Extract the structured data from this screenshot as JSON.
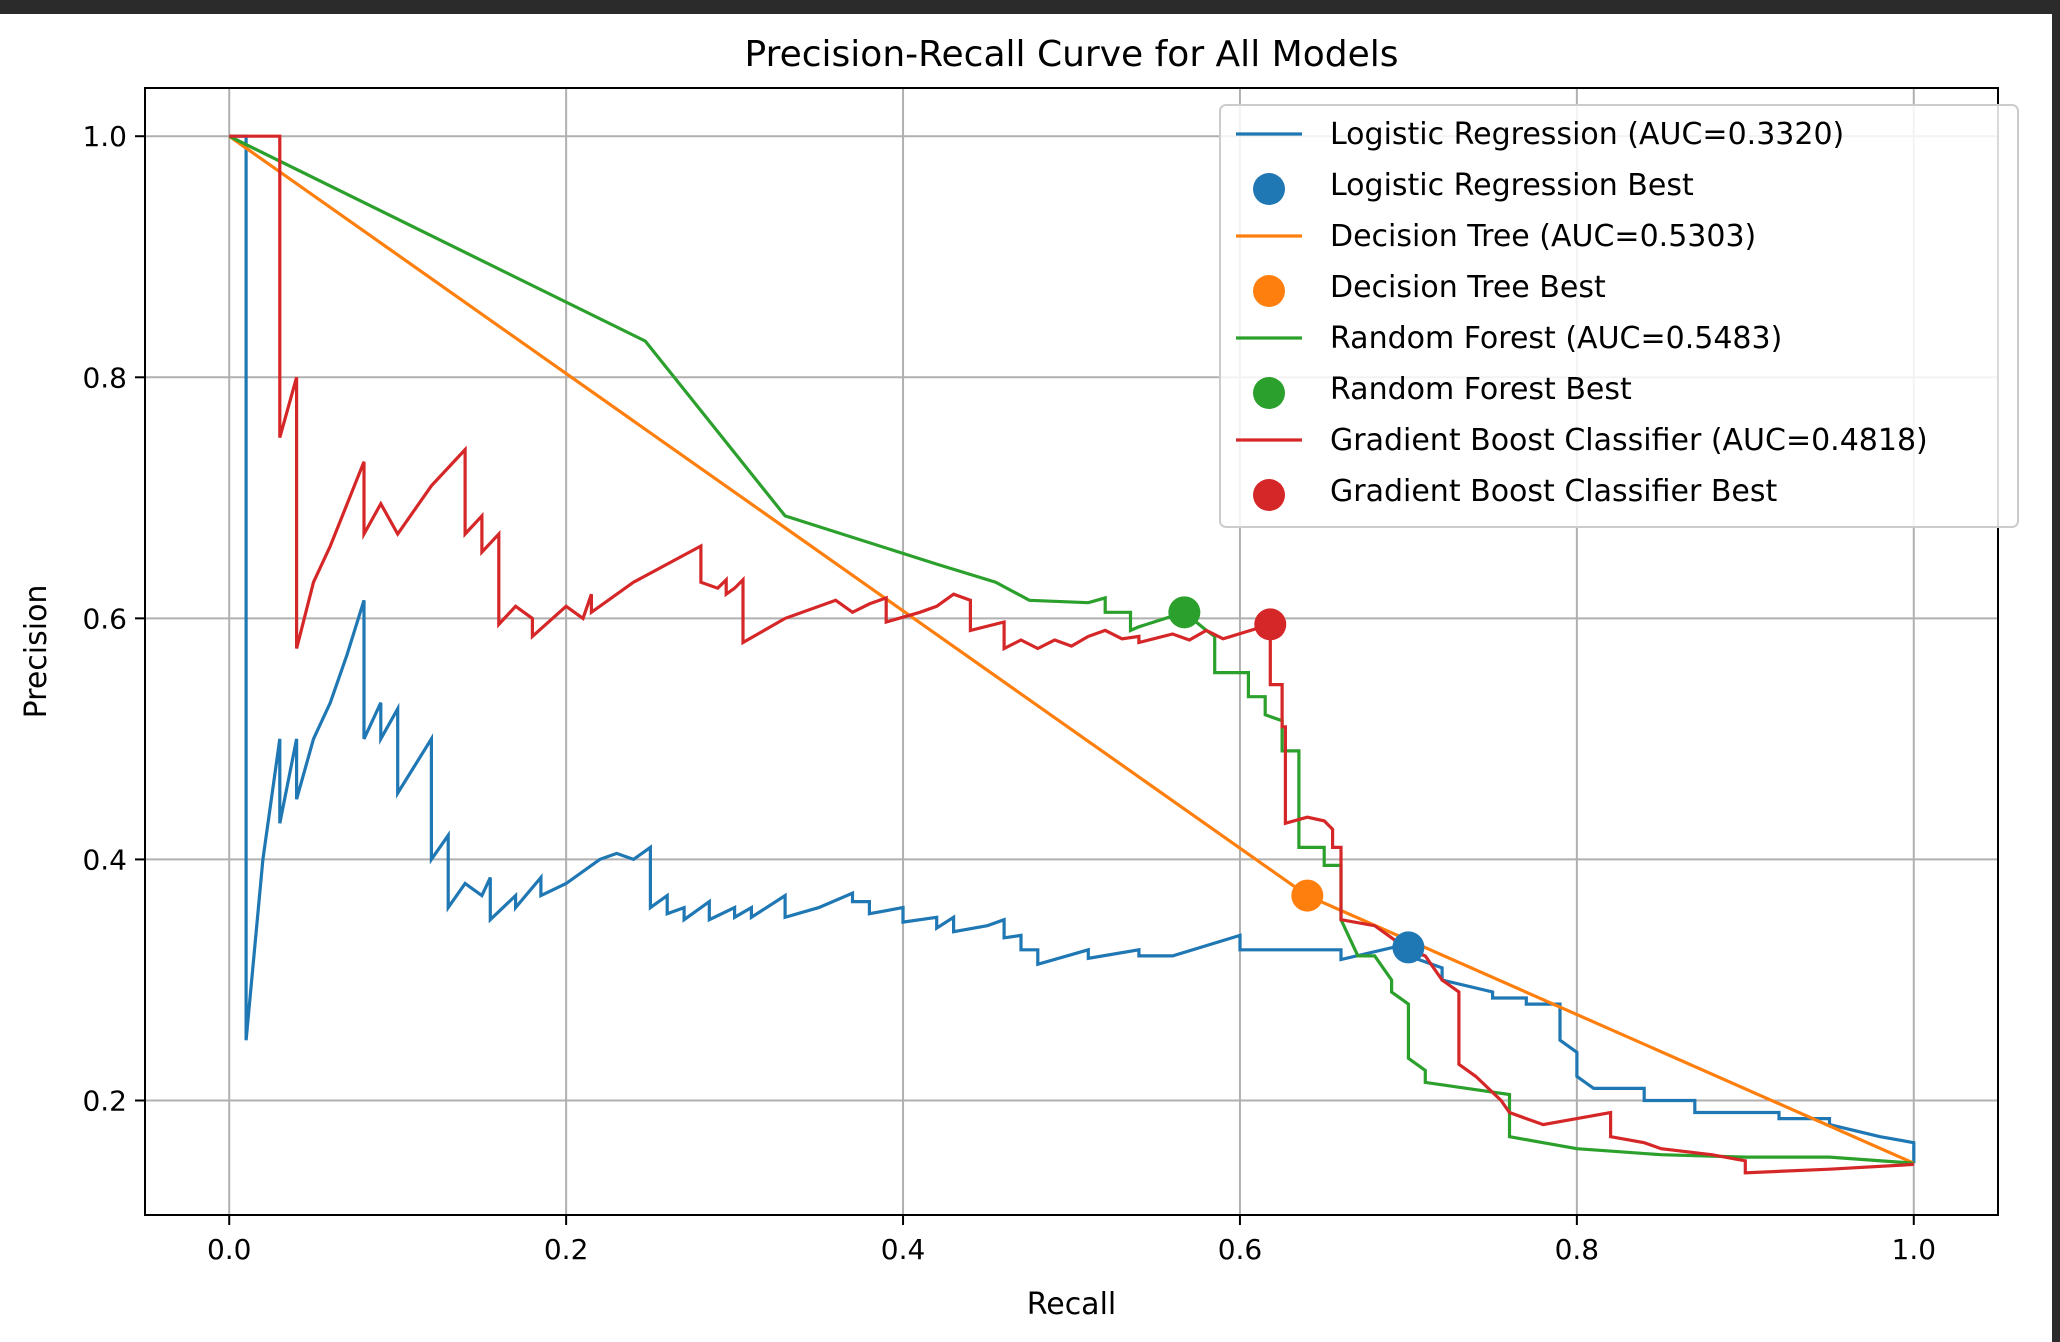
{
  "chart_data": {
    "type": "line",
    "title": "Precision-Recall Curve for All Models",
    "xlabel": "Recall",
    "ylabel": "Precision",
    "xlim": [
      -0.05,
      1.05
    ],
    "ylim": [
      0.105,
      1.04
    ],
    "xticks": [
      0.0,
      0.2,
      0.4,
      0.6,
      0.8,
      1.0
    ],
    "xtick_labels": [
      "0.0",
      "0.2",
      "0.4",
      "0.6",
      "0.8",
      "1.0"
    ],
    "yticks": [
      0.2,
      0.4,
      0.6,
      0.8,
      1.0
    ],
    "ytick_labels": [
      "0.2",
      "0.4",
      "0.6",
      "0.8",
      "1.0"
    ],
    "grid": true,
    "legend_position": "top-right",
    "series": [
      {
        "name": "Logistic Regression (AUC=0.3320)",
        "color": "#1f77b4",
        "points": [
          [
            0.0,
            1.0
          ],
          [
            0.01,
            1.0
          ],
          [
            0.01,
            0.25
          ],
          [
            0.02,
            0.4
          ],
          [
            0.03,
            0.5
          ],
          [
            0.03,
            0.43
          ],
          [
            0.04,
            0.5
          ],
          [
            0.04,
            0.45
          ],
          [
            0.05,
            0.5
          ],
          [
            0.06,
            0.53
          ],
          [
            0.07,
            0.57
          ],
          [
            0.08,
            0.615
          ],
          [
            0.08,
            0.5
          ],
          [
            0.09,
            0.53
          ],
          [
            0.09,
            0.5
          ],
          [
            0.1,
            0.525
          ],
          [
            0.1,
            0.455
          ],
          [
            0.12,
            0.5
          ],
          [
            0.12,
            0.4
          ],
          [
            0.13,
            0.42
          ],
          [
            0.13,
            0.36
          ],
          [
            0.14,
            0.38
          ],
          [
            0.15,
            0.37
          ],
          [
            0.155,
            0.385
          ],
          [
            0.155,
            0.35
          ],
          [
            0.17,
            0.37
          ],
          [
            0.17,
            0.36
          ],
          [
            0.185,
            0.385
          ],
          [
            0.185,
            0.37
          ],
          [
            0.2,
            0.38
          ],
          [
            0.22,
            0.4
          ],
          [
            0.23,
            0.405
          ],
          [
            0.24,
            0.4
          ],
          [
            0.25,
            0.41
          ],
          [
            0.25,
            0.36
          ],
          [
            0.26,
            0.37
          ],
          [
            0.26,
            0.355
          ],
          [
            0.27,
            0.36
          ],
          [
            0.27,
            0.35
          ],
          [
            0.285,
            0.365
          ],
          [
            0.285,
            0.35
          ],
          [
            0.3,
            0.36
          ],
          [
            0.3,
            0.352
          ],
          [
            0.31,
            0.36
          ],
          [
            0.31,
            0.352
          ],
          [
            0.33,
            0.37
          ],
          [
            0.33,
            0.352
          ],
          [
            0.35,
            0.36
          ],
          [
            0.37,
            0.372
          ],
          [
            0.37,
            0.365
          ],
          [
            0.38,
            0.365
          ],
          [
            0.38,
            0.355
          ],
          [
            0.4,
            0.36
          ],
          [
            0.4,
            0.348
          ],
          [
            0.42,
            0.352
          ],
          [
            0.42,
            0.343
          ],
          [
            0.43,
            0.352
          ],
          [
            0.43,
            0.34
          ],
          [
            0.45,
            0.345
          ],
          [
            0.46,
            0.35
          ],
          [
            0.46,
            0.335
          ],
          [
            0.47,
            0.337
          ],
          [
            0.47,
            0.325
          ],
          [
            0.48,
            0.325
          ],
          [
            0.48,
            0.313
          ],
          [
            0.51,
            0.325
          ],
          [
            0.51,
            0.318
          ],
          [
            0.54,
            0.325
          ],
          [
            0.54,
            0.32
          ],
          [
            0.56,
            0.32
          ],
          [
            0.6,
            0.337
          ],
          [
            0.6,
            0.325
          ],
          [
            0.64,
            0.325
          ],
          [
            0.66,
            0.325
          ],
          [
            0.66,
            0.317
          ],
          [
            0.7,
            0.33
          ],
          [
            0.7,
            0.32
          ],
          [
            0.72,
            0.31
          ],
          [
            0.72,
            0.3
          ],
          [
            0.75,
            0.29
          ],
          [
            0.75,
            0.285
          ],
          [
            0.77,
            0.285
          ],
          [
            0.77,
            0.28
          ],
          [
            0.79,
            0.28
          ],
          [
            0.79,
            0.25
          ],
          [
            0.8,
            0.24
          ],
          [
            0.8,
            0.22
          ],
          [
            0.81,
            0.21
          ],
          [
            0.84,
            0.21
          ],
          [
            0.84,
            0.2
          ],
          [
            0.87,
            0.2
          ],
          [
            0.87,
            0.19
          ],
          [
            0.92,
            0.19
          ],
          [
            0.92,
            0.185
          ],
          [
            0.95,
            0.185
          ],
          [
            0.95,
            0.18
          ],
          [
            0.98,
            0.17
          ],
          [
            1.0,
            0.165
          ],
          [
            1.0,
            0.148
          ]
        ]
      },
      {
        "name": "Decision Tree (AUC=0.5303)",
        "color": "#ff7f0e",
        "points": [
          [
            0.0,
            1.0
          ],
          [
            0.64,
            0.37
          ],
          [
            1.0,
            0.148
          ]
        ]
      },
      {
        "name": "Random Forest (AUC=0.5483)",
        "color": "#2ca02c",
        "points": [
          [
            0.0,
            1.0
          ],
          [
            0.247,
            0.83
          ],
          [
            0.33,
            0.685
          ],
          [
            0.42,
            0.645
          ],
          [
            0.455,
            0.63
          ],
          [
            0.475,
            0.615
          ],
          [
            0.51,
            0.613
          ],
          [
            0.52,
            0.617
          ],
          [
            0.52,
            0.605
          ],
          [
            0.535,
            0.605
          ],
          [
            0.535,
            0.59
          ],
          [
            0.54,
            0.593
          ],
          [
            0.567,
            0.605
          ],
          [
            0.58,
            0.59
          ],
          [
            0.585,
            0.585
          ],
          [
            0.585,
            0.555
          ],
          [
            0.605,
            0.555
          ],
          [
            0.605,
            0.535
          ],
          [
            0.615,
            0.535
          ],
          [
            0.615,
            0.52
          ],
          [
            0.625,
            0.515
          ],
          [
            0.625,
            0.49
          ],
          [
            0.635,
            0.49
          ],
          [
            0.635,
            0.41
          ],
          [
            0.65,
            0.41
          ],
          [
            0.65,
            0.395
          ],
          [
            0.66,
            0.395
          ],
          [
            0.66,
            0.35
          ],
          [
            0.67,
            0.32
          ],
          [
            0.68,
            0.32
          ],
          [
            0.685,
            0.31
          ],
          [
            0.69,
            0.3
          ],
          [
            0.69,
            0.29
          ],
          [
            0.7,
            0.28
          ],
          [
            0.7,
            0.235
          ],
          [
            0.71,
            0.225
          ],
          [
            0.71,
            0.215
          ],
          [
            0.76,
            0.205
          ],
          [
            0.76,
            0.17
          ],
          [
            0.8,
            0.16
          ],
          [
            0.85,
            0.155
          ],
          [
            0.9,
            0.153
          ],
          [
            0.95,
            0.153
          ],
          [
            1.0,
            0.148
          ]
        ]
      },
      {
        "name": "Gradient Boost Classifier (AUC=0.4818)",
        "color": "#d62728",
        "points": [
          [
            0.0,
            1.0
          ],
          [
            0.03,
            1.0
          ],
          [
            0.03,
            0.75
          ],
          [
            0.04,
            0.8
          ],
          [
            0.04,
            0.575
          ],
          [
            0.05,
            0.63
          ],
          [
            0.06,
            0.66
          ],
          [
            0.08,
            0.73
          ],
          [
            0.08,
            0.67
          ],
          [
            0.09,
            0.695
          ],
          [
            0.1,
            0.67
          ],
          [
            0.12,
            0.71
          ],
          [
            0.14,
            0.74
          ],
          [
            0.14,
            0.67
          ],
          [
            0.15,
            0.685
          ],
          [
            0.15,
            0.655
          ],
          [
            0.16,
            0.67
          ],
          [
            0.16,
            0.595
          ],
          [
            0.17,
            0.61
          ],
          [
            0.18,
            0.6
          ],
          [
            0.18,
            0.585
          ],
          [
            0.2,
            0.61
          ],
          [
            0.21,
            0.6
          ],
          [
            0.215,
            0.62
          ],
          [
            0.215,
            0.605
          ],
          [
            0.24,
            0.63
          ],
          [
            0.28,
            0.66
          ],
          [
            0.28,
            0.63
          ],
          [
            0.29,
            0.625
          ],
          [
            0.295,
            0.632
          ],
          [
            0.295,
            0.62
          ],
          [
            0.3,
            0.625
          ],
          [
            0.305,
            0.632
          ],
          [
            0.305,
            0.58
          ],
          [
            0.33,
            0.6
          ],
          [
            0.36,
            0.615
          ],
          [
            0.37,
            0.605
          ],
          [
            0.38,
            0.612
          ],
          [
            0.39,
            0.617
          ],
          [
            0.39,
            0.597
          ],
          [
            0.41,
            0.605
          ],
          [
            0.42,
            0.61
          ],
          [
            0.43,
            0.62
          ],
          [
            0.44,
            0.615
          ],
          [
            0.44,
            0.59
          ],
          [
            0.46,
            0.597
          ],
          [
            0.46,
            0.575
          ],
          [
            0.47,
            0.582
          ],
          [
            0.48,
            0.575
          ],
          [
            0.49,
            0.582
          ],
          [
            0.5,
            0.577
          ],
          [
            0.51,
            0.585
          ],
          [
            0.52,
            0.59
          ],
          [
            0.53,
            0.583
          ],
          [
            0.54,
            0.585
          ],
          [
            0.54,
            0.58
          ],
          [
            0.56,
            0.587
          ],
          [
            0.57,
            0.582
          ],
          [
            0.58,
            0.59
          ],
          [
            0.59,
            0.583
          ],
          [
            0.618,
            0.595
          ],
          [
            0.618,
            0.545
          ],
          [
            0.625,
            0.545
          ],
          [
            0.625,
            0.51
          ],
          [
            0.627,
            0.51
          ],
          [
            0.627,
            0.43
          ],
          [
            0.64,
            0.435
          ],
          [
            0.65,
            0.432
          ],
          [
            0.655,
            0.425
          ],
          [
            0.655,
            0.41
          ],
          [
            0.66,
            0.41
          ],
          [
            0.66,
            0.35
          ],
          [
            0.68,
            0.345
          ],
          [
            0.69,
            0.335
          ],
          [
            0.7,
            0.325
          ],
          [
            0.71,
            0.32
          ],
          [
            0.72,
            0.3
          ],
          [
            0.73,
            0.29
          ],
          [
            0.73,
            0.23
          ],
          [
            0.74,
            0.22
          ],
          [
            0.755,
            0.2
          ],
          [
            0.76,
            0.19
          ],
          [
            0.77,
            0.185
          ],
          [
            0.78,
            0.18
          ],
          [
            0.8,
            0.185
          ],
          [
            0.82,
            0.19
          ],
          [
            0.82,
            0.17
          ],
          [
            0.84,
            0.165
          ],
          [
            0.85,
            0.16
          ],
          [
            0.88,
            0.155
          ],
          [
            0.9,
            0.15
          ],
          [
            0.9,
            0.14
          ],
          [
            0.95,
            0.143
          ],
          [
            1.0,
            0.147
          ]
        ]
      }
    ],
    "best_points": [
      {
        "name": "Logistic Regression Best",
        "color": "#1f77b4",
        "x": 0.7,
        "y": 0.327
      },
      {
        "name": "Decision Tree Best",
        "color": "#ff7f0e",
        "x": 0.64,
        "y": 0.37
      },
      {
        "name": "Random Forest Best",
        "color": "#2ca02c",
        "x": 0.567,
        "y": 0.605
      },
      {
        "name": "Gradient Boost Classifier Best",
        "color": "#d62728",
        "x": 0.618,
        "y": 0.595
      }
    ],
    "legend": [
      {
        "label": "Logistic Regression (AUC=0.3320)",
        "kind": "line",
        "color": "#1f77b4"
      },
      {
        "label": "Logistic Regression Best",
        "kind": "marker",
        "color": "#1f77b4"
      },
      {
        "label": "Decision Tree (AUC=0.5303)",
        "kind": "line",
        "color": "#ff7f0e"
      },
      {
        "label": "Decision Tree Best",
        "kind": "marker",
        "color": "#ff7f0e"
      },
      {
        "label": "Random Forest (AUC=0.5483)",
        "kind": "line",
        "color": "#2ca02c"
      },
      {
        "label": "Random Forest Best",
        "kind": "marker",
        "color": "#2ca02c"
      },
      {
        "label": "Gradient Boost Classifier (AUC=0.4818)",
        "kind": "line",
        "color": "#d62728"
      },
      {
        "label": "Gradient Boost Classifier Best",
        "kind": "marker",
        "color": "#d62728"
      }
    ]
  }
}
